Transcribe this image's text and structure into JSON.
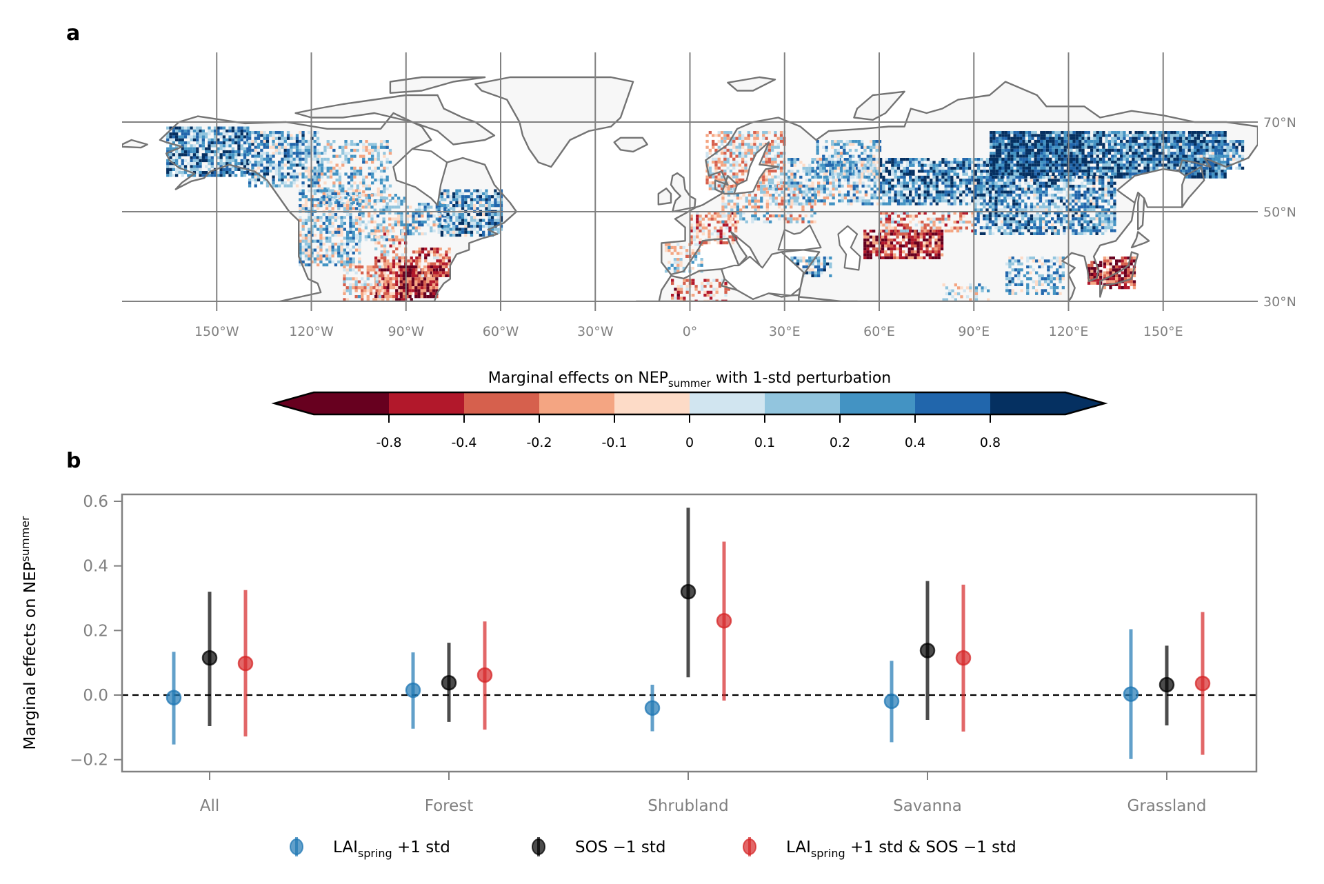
{
  "panels": {
    "a": "a",
    "b": "b"
  },
  "map": {
    "longitude_labels": [
      "150°W",
      "120°W",
      "90°W",
      "60°W",
      "30°W",
      "0°",
      "30°E",
      "60°E",
      "90°E",
      "120°E",
      "150°E"
    ],
    "longitudes": [
      -150,
      -120,
      -90,
      -60,
      -30,
      0,
      30,
      60,
      90,
      120,
      150
    ],
    "latitude_labels": [
      "70°N",
      "50°N",
      "30°N"
    ],
    "latitudes": [
      70,
      50,
      30
    ],
    "lon_range": [
      -180,
      180
    ],
    "lat_range": [
      30,
      80
    ],
    "land_color": "#f7f7f7",
    "coast_color": "#737373",
    "grid_color": "#808080"
  },
  "colorbar": {
    "title_main": "Marginal effects on NEP",
    "title_sub": "summer",
    "title_tail": " with 1-std perturbation",
    "tick_labels": [
      "-0.8",
      "-0.4",
      "-0.2",
      "-0.1",
      "0",
      "0.1",
      "0.2",
      "0.4",
      "0.8"
    ],
    "colors": [
      "#67001f",
      "#b2182b",
      "#d6604d",
      "#f4a582",
      "#fddbc7",
      "#d1e5f0",
      "#92c5de",
      "#4393c3",
      "#2166ac",
      "#053061"
    ],
    "extend": "both"
  },
  "chart_data": {
    "type": "errorbar",
    "title": "",
    "xlabel": "",
    "ylabel_main": "Marginal effects on NEP",
    "ylabel_sub": "summer",
    "categories": [
      "All",
      "Forest",
      "Shrubland",
      "Savanna",
      "Grassland"
    ],
    "ylim": [
      -0.24,
      0.62
    ],
    "yticks": [
      -0.2,
      0.0,
      0.2,
      0.4,
      0.6
    ],
    "ytick_labels": [
      "−0.2",
      "0.0",
      "0.2",
      "0.4",
      "0.6"
    ],
    "reference_line": 0.0,
    "grid": false,
    "legend_position": "bottom-center",
    "series": [
      {
        "name_main": "LAI",
        "name_sub": "spring",
        "name_tail": " +1 std",
        "color": "#1f77b4",
        "values": [
          -0.008,
          0.015,
          -0.04,
          -0.019,
          0.003
        ],
        "lower": [
          -0.153,
          -0.104,
          -0.112,
          -0.146,
          -0.198
        ],
        "upper": [
          0.134,
          0.132,
          0.032,
          0.106,
          0.204
        ]
      },
      {
        "name_main": "SOS −1 std",
        "name_sub": "",
        "name_tail": "",
        "color": "#000000",
        "values": [
          0.115,
          0.038,
          0.32,
          0.138,
          0.032
        ],
        "lower": [
          -0.096,
          -0.083,
          0.055,
          -0.077,
          -0.094
        ],
        "upper": [
          0.32,
          0.162,
          0.58,
          0.353,
          0.153
        ]
      },
      {
        "name_main": "LAI",
        "name_sub": "spring",
        "name_tail": " +1 std & SOS −1 std",
        "color": "#d62728",
        "values": [
          0.098,
          0.062,
          0.23,
          0.115,
          0.036
        ],
        "lower": [
          -0.128,
          -0.107,
          -0.017,
          -0.113,
          -0.185
        ],
        "upper": [
          0.325,
          0.228,
          0.475,
          0.342,
          0.257
        ]
      }
    ]
  }
}
